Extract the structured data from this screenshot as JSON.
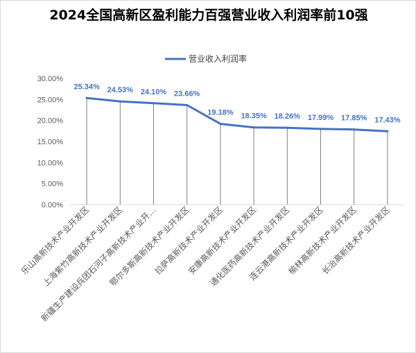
{
  "chart_data": {
    "type": "line",
    "title": "2024全国高新区盈利能力百强营业收入利润率前10强",
    "xlabel": "",
    "ylabel": "",
    "categories": [
      "乐山高新技术产业开发区",
      "上海紫竹高新技术产业开发区",
      "新疆生产建设兵团石河子高新技术产业开…",
      "鄂尔多斯高新技术产业开发区",
      "拉萨高新技术产业开发区",
      "安康高新技术产业开发区",
      "通化医药高新技术产业开发区",
      "连云港高新技术产业开发区",
      "榆林高新技术产业开发区",
      "长治高新技术产业开发区"
    ],
    "series": [
      {
        "name": "营业收入利润率",
        "values": [
          25.34,
          24.53,
          24.1,
          23.66,
          19.18,
          18.35,
          18.26,
          17.99,
          17.85,
          17.43
        ],
        "labels": [
          "25.34%",
          "24.53%",
          "24.10%",
          "23.66%",
          "19.18%",
          "18.35%",
          "18.26%",
          "17.99%",
          "17.85%",
          "17.43%"
        ]
      }
    ],
    "ylim": [
      0,
      30
    ],
    "yticks": [
      0,
      5,
      10,
      15,
      20,
      25,
      30
    ],
    "ytick_labels": [
      "0.00%",
      "5.00%",
      "10.00%",
      "15.00%",
      "20.00%",
      "25.00%",
      "30.00%"
    ],
    "legend_position": "top",
    "drop_lines": true,
    "colors": {
      "series": "#4472c4",
      "drop_line": "#7f7f7f",
      "axis": "#d9d9d9"
    }
  }
}
